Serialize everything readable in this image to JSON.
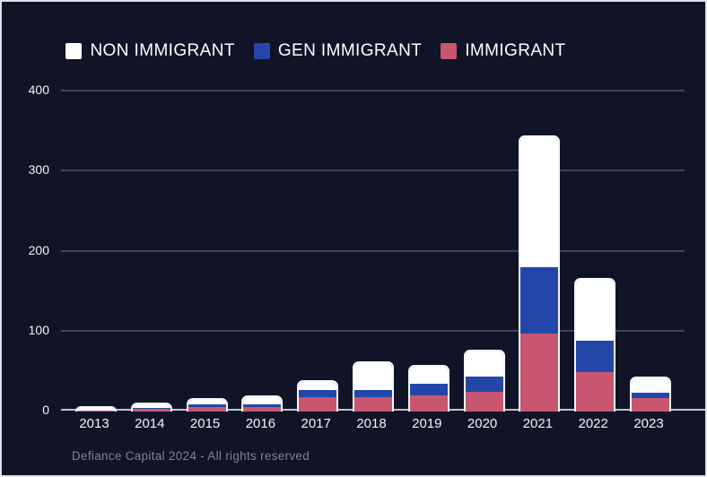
{
  "legend": {
    "items": [
      {
        "label": "NON IMMIGRANT",
        "color": "#ffffff"
      },
      {
        "label": "GEN IMMIGRANT",
        "color": "#2347a8"
      },
      {
        "label": "IMMIGRANT",
        "color": "#c85670"
      }
    ]
  },
  "footer": {
    "text": "Defiance Capital 2024 - All rights reserved"
  },
  "colors": {
    "background": "#101426",
    "grid": "#3f4355",
    "axis": "#c2c5d1",
    "bar_border": "#f7f8fb",
    "non_immigrant": "#ffffff",
    "gen_immigrant": "#2347a8",
    "immigrant": "#c85670"
  },
  "chart_data": {
    "type": "bar",
    "stacked": true,
    "title": "",
    "xlabel": "",
    "ylabel": "",
    "ylim": [
      0,
      400
    ],
    "yticks": [
      0,
      100,
      200,
      300,
      400
    ],
    "grid": true,
    "legend_position": "top",
    "categories": [
      "2013",
      "2014",
      "2015",
      "2016",
      "2017",
      "2018",
      "2019",
      "2020",
      "2021",
      "2022",
      "2023"
    ],
    "series": [
      {
        "name": "IMMIGRANT",
        "color": "#c85670",
        "values": [
          1,
          3,
          6,
          6,
          18,
          18,
          20,
          25,
          97,
          49,
          17
        ]
      },
      {
        "name": "GEN IMMIGRANT",
        "color": "#2347a8",
        "values": [
          0,
          1,
          3,
          3,
          9,
          9,
          15,
          19,
          83,
          40,
          6
        ]
      },
      {
        "name": "NON IMMIGRANT",
        "color": "#ffffff",
        "values": [
          4,
          5,
          6,
          9,
          10,
          34,
          21,
          31,
          163,
          76,
          19
        ]
      }
    ],
    "totals": [
      5,
      9,
      15,
      18,
      37,
      61,
      56,
      75,
      343,
      165,
      42
    ]
  }
}
